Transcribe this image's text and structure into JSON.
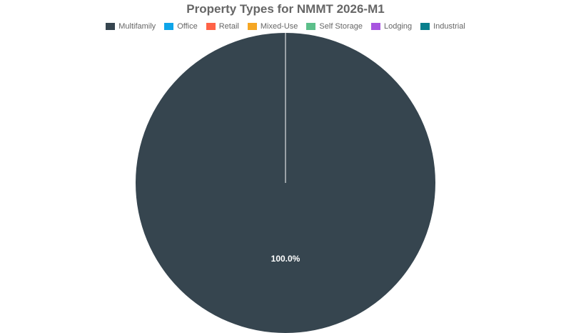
{
  "chart_data": {
    "type": "pie",
    "title": "Property Types for NMMT 2026-M1",
    "legend_position": "top",
    "categories": [
      "Multifamily",
      "Office",
      "Retail",
      "Mixed-Use",
      "Self Storage",
      "Lodging",
      "Industrial"
    ],
    "values": [
      100.0,
      0,
      0,
      0,
      0,
      0,
      0
    ],
    "value_unit": "%",
    "colors": [
      "#36454f",
      "#0ea5e9",
      "#ff6347",
      "#f5a623",
      "#5cbf8a",
      "#a855e0",
      "#087f8c"
    ],
    "data_labels": [
      "100.0%"
    ]
  }
}
